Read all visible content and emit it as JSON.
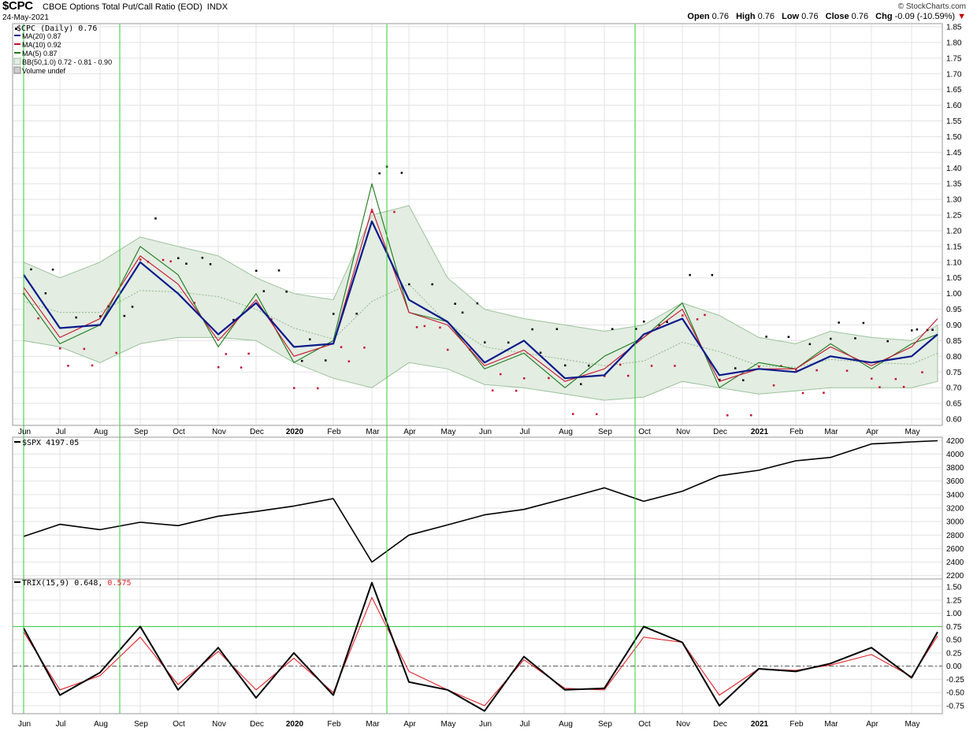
{
  "header": {
    "symbol": "$CPC",
    "title": "CBOE Options Total Put/Call Ratio (EOD)",
    "exchange": "INDX",
    "date": "24-May-2021",
    "brand": "© StockCharts.com",
    "ohlc": {
      "open_label": "Open",
      "open": "0.76",
      "high_label": "High",
      "high": "0.76",
      "low_label": "Low",
      "low": "0.76",
      "close_label": "Close",
      "close": "0.76",
      "chg_label": "Chg",
      "chg": "-0.09 (-10.59%)"
    }
  },
  "legend_main": [
    {
      "text": "$CPC (Daily) 0.76",
      "color": "#000000"
    },
    {
      "text": "MA(20) 0.87",
      "color": "#0a1a8c"
    },
    {
      "text": "MA(10) 0.92",
      "color": "#c8102e"
    },
    {
      "text": "MA(5) 0.87",
      "color": "#1a7a1a"
    },
    {
      "text": "BB(50,1.0) 0.72 - 0.81 - 0.90",
      "color": "#4a7a4a"
    },
    {
      "text": "Volume undef",
      "color": "#555555"
    }
  ],
  "legend_spx": {
    "text": "$SPX 4197.05"
  },
  "legend_trix": {
    "label": "TRIX(15,9)",
    "value1": "0.648,",
    "value2": "0.575"
  },
  "x_axis_labels": [
    "Jun",
    "Jul",
    "Aug",
    "Sep",
    "Oct",
    "Nov",
    "Dec",
    "2020",
    "Feb",
    "Mar",
    "Apr",
    "May",
    "Jun",
    "Jul",
    "Aug",
    "Sep",
    "Oct",
    "Nov",
    "Dec",
    "2021",
    "Feb",
    "Mar",
    "Apr",
    "May"
  ],
  "colors": {
    "ma20": "#0a1a8c",
    "ma10": "#c8102e",
    "ma5": "#1a7a1a",
    "bb_fill": "#e3ede2",
    "bb_edge": "#9cc29a",
    "spx": "#000000",
    "trix": "#000000",
    "trix_signal": "#e0242b",
    "vlines": "#33cc33"
  },
  "chart_data": [
    {
      "type": "line",
      "title": "CBOE Options Total Put/Call Ratio (EOD)",
      "ylim": [
        0.58,
        1.86
      ],
      "y_ticks": [
        "1.85",
        "1.80",
        "1.75",
        "1.70",
        "1.65",
        "1.60",
        "1.55",
        "1.50",
        "1.45",
        "1.40",
        "1.35",
        "1.30",
        "1.25",
        "1.20",
        "1.15",
        "1.10",
        "1.05",
        "1.00",
        "0.95",
        "0.90",
        "0.85",
        "0.80",
        "0.75",
        "0.70",
        "0.65",
        "0.60"
      ],
      "x": [
        "Jun",
        "Jul",
        "Aug",
        "Sep",
        "Oct",
        "Nov",
        "Dec",
        "2020",
        "Feb",
        "Mar",
        "Apr",
        "May",
        "Jun",
        "Jul",
        "Aug",
        "Sep",
        "Oct",
        "Nov",
        "Dec",
        "2021",
        "Feb",
        "Mar",
        "Apr",
        "May",
        "May-24"
      ],
      "series": [
        {
          "name": "MA(20)",
          "values": [
            1.06,
            0.89,
            0.9,
            1.1,
            1.0,
            0.87,
            0.97,
            0.83,
            0.84,
            1.23,
            0.98,
            0.91,
            0.78,
            0.85,
            0.73,
            0.74,
            0.87,
            0.92,
            0.74,
            0.76,
            0.75,
            0.8,
            0.78,
            0.8,
            0.87
          ]
        },
        {
          "name": "MA(10)",
          "values": [
            1.02,
            0.86,
            0.92,
            1.12,
            1.03,
            0.85,
            0.98,
            0.8,
            0.84,
            1.27,
            0.94,
            0.9,
            0.77,
            0.82,
            0.72,
            0.76,
            0.86,
            0.95,
            0.72,
            0.76,
            0.76,
            0.83,
            0.77,
            0.83,
            0.92
          ]
        },
        {
          "name": "MA(5)",
          "values": [
            1.0,
            0.84,
            0.9,
            1.15,
            1.06,
            0.83,
            1.0,
            0.78,
            0.85,
            1.35,
            0.94,
            0.91,
            0.76,
            0.81,
            0.7,
            0.8,
            0.86,
            0.97,
            0.7,
            0.78,
            0.76,
            0.84,
            0.76,
            0.84,
            0.87
          ]
        },
        {
          "name": "BB(50,1.0) upper",
          "values": [
            1.1,
            1.05,
            1.1,
            1.18,
            1.15,
            1.12,
            1.05,
            1.0,
            0.98,
            1.25,
            1.28,
            1.05,
            0.95,
            0.92,
            0.9,
            0.88,
            0.9,
            0.97,
            0.93,
            0.86,
            0.84,
            0.88,
            0.86,
            0.85,
            0.9
          ]
        },
        {
          "name": "BB(50,1.0) lower",
          "values": [
            0.85,
            0.83,
            0.78,
            0.84,
            0.86,
            0.86,
            0.85,
            0.78,
            0.73,
            0.7,
            0.78,
            0.76,
            0.71,
            0.7,
            0.68,
            0.66,
            0.67,
            0.72,
            0.7,
            0.68,
            0.69,
            0.7,
            0.7,
            0.7,
            0.72
          ]
        }
      ]
    },
    {
      "type": "line",
      "title": "$SPX",
      "ylim": [
        2150,
        4250
      ],
      "y_ticks": [
        "4200",
        "4000",
        "3800",
        "3600",
        "3400",
        "3200",
        "3000",
        "2800",
        "2600",
        "2400",
        "2200"
      ],
      "series": [
        {
          "name": "$SPX",
          "values": [
            2780,
            2960,
            2880,
            2990,
            2940,
            3080,
            3150,
            3230,
            3340,
            2400,
            2800,
            2950,
            3100,
            3180,
            3340,
            3500,
            3300,
            3450,
            3680,
            3760,
            3900,
            3950,
            4150,
            4180,
            4197.05
          ]
        }
      ]
    },
    {
      "type": "line",
      "title": "TRIX(15,9)",
      "ylim": [
        -0.9,
        1.65
      ],
      "y_ticks": [
        "1.50",
        "1.25",
        "1.00",
        "0.75",
        "0.50",
        "0.25",
        "0.00",
        "-0.25",
        "-0.50",
        "-0.75"
      ],
      "series": [
        {
          "name": "TRIX(15,9)",
          "values": [
            0.72,
            -0.55,
            -0.12,
            0.75,
            -0.45,
            0.35,
            -0.6,
            0.25,
            -0.55,
            1.58,
            -0.3,
            -0.45,
            -0.85,
            0.18,
            -0.45,
            -0.42,
            0.75,
            0.45,
            -0.75,
            -0.05,
            -0.1,
            0.05,
            0.35,
            -0.22,
            0.648
          ]
        },
        {
          "name": "signal",
          "values": [
            0.65,
            -0.45,
            -0.18,
            0.55,
            -0.35,
            0.28,
            -0.45,
            0.15,
            -0.5,
            1.3,
            -0.1,
            -0.45,
            -0.75,
            0.12,
            -0.42,
            -0.45,
            0.55,
            0.45,
            -0.55,
            -0.05,
            -0.08,
            0.02,
            0.22,
            -0.2,
            0.575
          ]
        }
      ]
    }
  ]
}
